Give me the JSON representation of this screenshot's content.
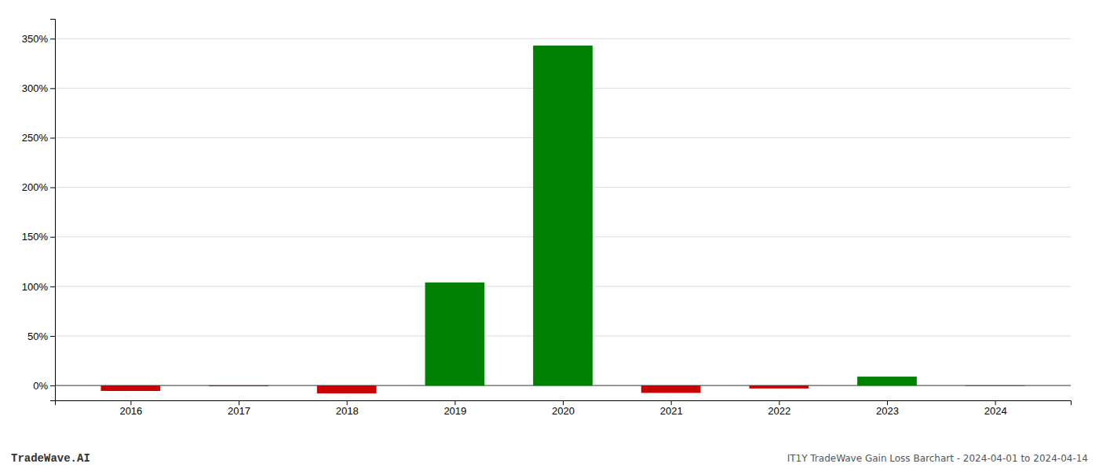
{
  "chart_data": {
    "type": "bar",
    "annotations": [
      "TradeWave.AI",
      "IT1Y TradeWave Gain Loss Barchart - 2024-04-01 to 2024-04-14"
    ],
    "x": [
      2016,
      2017,
      2018,
      2019,
      2020,
      2021,
      2022,
      2023,
      2024
    ],
    "values": [
      -5.5,
      -0.8,
      -8.0,
      104.0,
      343.0,
      -7.5,
      -3.0,
      9.0,
      -0.5
    ],
    "colors": [
      "#cc0000",
      "#cc0000",
      "#cc0000",
      "#008000",
      "#008000",
      "#cc0000",
      "#cc0000",
      "#008000",
      "#cc0000"
    ],
    "xlim": [
      2015.3,
      2024.7
    ],
    "xticks": [
      2016,
      2017,
      2018,
      2019,
      2020,
      2021,
      2022,
      2023,
      2024
    ],
    "ylim": [
      -15,
      370
    ],
    "yticks": [
      {
        "value": 0,
        "label": "0%"
      },
      {
        "value": 50,
        "label": "50%"
      },
      {
        "value": 100,
        "label": "100%"
      },
      {
        "value": 150,
        "label": "150%"
      },
      {
        "value": 200,
        "label": "200%"
      },
      {
        "value": 250,
        "label": "250%"
      },
      {
        "value": 300,
        "label": "300%"
      },
      {
        "value": 350,
        "label": "350%"
      }
    ],
    "grid": true
  }
}
